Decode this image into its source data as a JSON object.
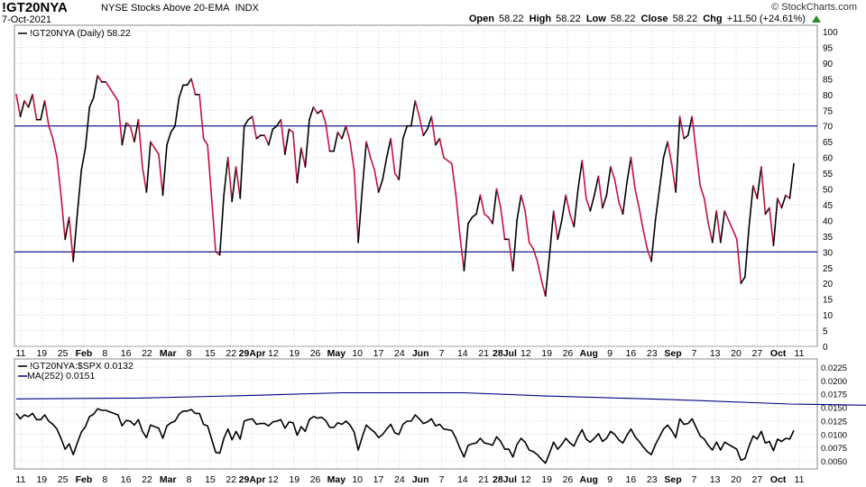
{
  "header": {
    "symbol": "!GT20NYA",
    "description": "NYSE Stocks Above 20-EMA",
    "exchange": "INDX",
    "date": "7-Oct-2021",
    "brand": "© StockCharts.com",
    "open_label": "Open",
    "open_value": "58.22",
    "high_label": "High",
    "high_value": "58.22",
    "low_label": "Low",
    "low_value": "58.22",
    "close_label": "Close",
    "close_value": "58.22",
    "chg_label": "Chg",
    "chg_value": "+11.50 (+24.61%)"
  },
  "colors": {
    "up": "#000000",
    "down": "#c4123c",
    "ref_line": "#000080",
    "ma_line": "#000080",
    "grid": "#d9d9d9"
  },
  "chart_data": [
    {
      "type": "line",
      "legend": "!GT20NYA (Daily) 58.22",
      "ylim": [
        0,
        100
      ],
      "yticks": [
        0,
        5,
        10,
        15,
        20,
        25,
        30,
        35,
        40,
        45,
        50,
        55,
        60,
        65,
        70,
        75,
        80,
        85,
        90,
        95,
        100
      ],
      "reference_lines": [
        70,
        30
      ],
      "x_ticks": [
        "11",
        "19",
        "25",
        "Feb",
        "8",
        "16",
        "22",
        "Mar",
        "8",
        "15",
        "22",
        "29Apr",
        "12",
        "19",
        "26",
        "May",
        "10",
        "17",
        "24",
        "Jun",
        "7",
        "14",
        "21",
        "28Jul",
        "12",
        "19",
        "26",
        "Aug",
        "9",
        "16",
        "23",
        "Sep",
        "7",
        "13",
        "20",
        "27",
        "Oct",
        "11"
      ],
      "x_ticks_bold": [
        "Feb",
        "Mar",
        "29Apr",
        "May",
        "Jun",
        "28Jul",
        "Aug",
        "Sep",
        "Oct"
      ],
      "values": [
        80,
        73,
        78,
        76,
        80,
        72,
        72,
        78,
        70,
        66,
        60,
        48,
        34,
        41,
        27,
        42,
        56,
        63,
        76,
        79,
        86,
        84,
        84,
        82,
        80,
        78,
        64,
        71,
        70,
        65,
        72,
        57,
        49,
        65,
        63,
        61,
        48,
        64,
        68,
        70,
        79,
        83,
        83,
        85,
        80,
        80,
        66,
        64,
        47,
        30,
        29,
        48,
        60,
        46,
        57,
        47,
        70,
        72,
        73,
        66,
        67,
        67,
        64,
        69,
        70,
        72,
        61,
        69,
        68,
        52,
        63,
        57,
        72,
        76,
        74,
        75,
        71,
        62,
        62,
        68,
        66,
        70,
        65,
        56,
        33,
        50,
        65,
        60,
        56,
        49,
        53,
        60,
        66,
        55,
        53,
        66,
        70,
        70,
        78,
        73,
        67,
        69,
        73,
        64,
        66,
        60,
        59,
        58,
        48,
        35,
        24,
        39,
        41,
        42,
        48,
        42,
        41,
        39,
        50,
        44,
        34,
        34,
        24,
        40,
        48,
        43,
        33,
        31,
        27,
        21,
        16,
        29,
        43,
        34,
        40,
        48,
        42,
        38,
        50,
        59,
        47,
        43,
        48,
        54,
        44,
        48,
        57,
        53,
        46,
        42,
        52,
        60,
        50,
        44,
        37,
        31,
        27,
        40,
        50,
        60,
        65,
        58,
        49,
        73,
        66,
        67,
        73,
        62,
        51,
        47,
        39,
        33,
        43,
        33,
        43,
        40,
        37,
        34,
        20,
        22,
        38,
        51,
        47,
        57,
        42,
        44,
        32,
        47,
        44,
        48,
        47,
        58
      ]
    },
    {
      "type": "line",
      "legend": [
        "!GT20NYA:$SPX 0.0132",
        "MA(252) 0.0151"
      ],
      "ylim": [
        0.0035,
        0.024
      ],
      "yticks": [
        0.005,
        0.0075,
        0.01,
        0.0125,
        0.015,
        0.0175,
        0.02,
        0.0225
      ],
      "ytick_labels": [
        "0.0050",
        "0.0075",
        "0.0100",
        "0.0125",
        "0.0150",
        "0.0175",
        "0.0200",
        "0.0225"
      ],
      "ratio_scale": [
        0.0095,
        0.000145
      ],
      "ma": [
        [
          0,
          0.01655
        ],
        [
          30,
          0.0167
        ],
        [
          60,
          0.01725
        ],
        [
          80,
          0.0177
        ],
        [
          110,
          0.0177
        ],
        [
          130,
          0.0171
        ],
        [
          160,
          0.01645
        ],
        [
          190,
          0.0156
        ],
        [
          220,
          0.01525
        ],
        [
          262,
          0.0151
        ]
      ]
    }
  ]
}
